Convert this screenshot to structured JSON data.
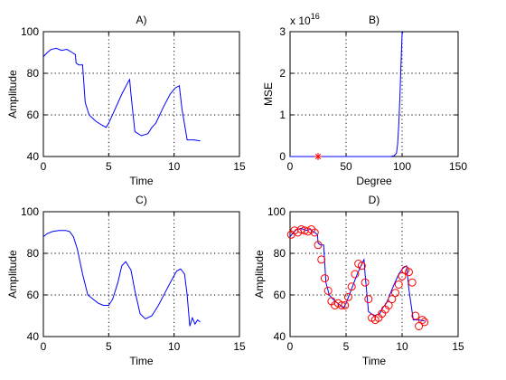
{
  "chart_data": [
    {
      "id": "A",
      "type": "line",
      "title": "A)",
      "xlabel": "Time",
      "ylabel": "Amplitude",
      "xlim": [
        0,
        15
      ],
      "ylim": [
        40,
        100
      ],
      "xticks": [
        0,
        5,
        10,
        15
      ],
      "yticks": [
        40,
        60,
        80,
        100
      ],
      "grid": true,
      "series": [
        {
          "color": "#0000ff",
          "x": [
            0,
            0.3,
            0.6,
            1.0,
            1.4,
            1.8,
            2.2,
            2.45,
            2.5,
            2.7,
            3.0,
            3.2,
            3.5,
            4.0,
            4.5,
            4.8,
            5.0,
            5.5,
            6.0,
            6.5,
            6.6,
            6.7,
            7.0,
            7.5,
            8.0,
            8.3,
            8.6,
            9.2,
            9.7,
            10.1,
            10.4,
            10.6,
            11.0,
            11.5,
            12.0
          ],
          "y": [
            88,
            90,
            91.5,
            92,
            91,
            91.5,
            90,
            89,
            85,
            84,
            84,
            66,
            60,
            57,
            55,
            54,
            56,
            63,
            70,
            76,
            77,
            70,
            52,
            50,
            51,
            54,
            56,
            64,
            70,
            73,
            74,
            63,
            48,
            48,
            47.5
          ]
        }
      ]
    },
    {
      "id": "B",
      "type": "line",
      "title": "B)",
      "xlabel": "Degree",
      "ylabel": "MSE",
      "xlim": [
        0,
        150
      ],
      "ylim": [
        0,
        3
      ],
      "xticks": [
        0,
        50,
        100,
        150
      ],
      "yticks": [
        0,
        1,
        2,
        3
      ],
      "multiplier": "x 10",
      "multiplier_exp": "16",
      "grid": true,
      "series": [
        {
          "color": "#0000ff",
          "x": [
            0,
            10,
            20,
            30,
            40,
            50,
            60,
            70,
            80,
            90,
            93,
            95,
            96,
            97,
            98,
            99,
            100,
            101
          ],
          "y": [
            0,
            0,
            0,
            0,
            0,
            0,
            0,
            0,
            0,
            0,
            0.02,
            0.08,
            0.3,
            0.75,
            1.4,
            2.2,
            2.95,
            3.0
          ]
        }
      ],
      "markers": [
        {
          "x": 25,
          "y": 0,
          "symbol": "*",
          "color": "#ff0000"
        }
      ]
    },
    {
      "id": "C",
      "type": "line",
      "title": "C)",
      "xlabel": "Time",
      "ylabel": "Amplitude",
      "xlim": [
        0,
        15
      ],
      "ylim": [
        40,
        100
      ],
      "xticks": [
        0,
        5,
        10,
        15
      ],
      "yticks": [
        40,
        60,
        80,
        100
      ],
      "grid": true,
      "series": [
        {
          "color": "#0000ff",
          "x": [
            0,
            0.3,
            0.7,
            1.2,
            1.7,
            2.0,
            2.3,
            2.6,
            3.0,
            3.4,
            3.8,
            4.2,
            4.6,
            5.0,
            5.3,
            5.7,
            6.0,
            6.3,
            6.7,
            7.0,
            7.4,
            7.8,
            8.3,
            8.8,
            9.3,
            9.8,
            10.2,
            10.5,
            10.8,
            11.0,
            11.2,
            11.4,
            11.6,
            11.8,
            12.0
          ],
          "y": [
            88,
            89.5,
            90.5,
            91,
            91,
            90.5,
            88,
            82,
            70,
            60,
            58,
            56,
            55,
            55,
            58,
            66,
            74,
            76,
            72,
            62,
            51,
            48.5,
            50,
            55,
            61,
            67,
            71.5,
            72.5,
            70,
            60,
            45,
            49,
            46,
            48,
            47
          ]
        }
      ]
    },
    {
      "id": "D",
      "type": "scatter",
      "title": "D)",
      "xlabel": "Time",
      "ylabel": "Amplitude",
      "xlim": [
        0,
        15
      ],
      "ylim": [
        40,
        100
      ],
      "xticks": [
        0,
        5,
        10,
        15
      ],
      "yticks": [
        40,
        60,
        80,
        100
      ],
      "grid": true,
      "series": [
        {
          "color": "#0000ff",
          "kind": "line",
          "x": [
            0,
            0.3,
            0.6,
            1.0,
            1.4,
            1.8,
            2.2,
            2.45,
            2.5,
            2.7,
            3.0,
            3.2,
            3.5,
            4.0,
            4.5,
            4.8,
            5.0,
            5.5,
            6.0,
            6.5,
            6.6,
            6.7,
            7.0,
            7.5,
            8.0,
            8.3,
            8.6,
            9.2,
            9.7,
            10.1,
            10.4,
            10.6,
            11.0,
            11.5,
            12.0
          ],
          "y": [
            88,
            90,
            91.5,
            92,
            91,
            91.5,
            90,
            89,
            85,
            84,
            84,
            66,
            60,
            57,
            55,
            54,
            56,
            63,
            70,
            76,
            77,
            70,
            52,
            50,
            51,
            54,
            56,
            64,
            70,
            73,
            74,
            63,
            48,
            48,
            47.5
          ]
        },
        {
          "color": "#ff0000",
          "kind": "circles",
          "x": [
            0.1,
            0.4,
            0.7,
            1.0,
            1.3,
            1.6,
            1.9,
            2.2,
            2.5,
            2.8,
            3.1,
            3.4,
            3.7,
            4.0,
            4.3,
            4.6,
            4.9,
            5.2,
            5.5,
            5.8,
            6.1,
            6.4,
            6.7,
            7.0,
            7.3,
            7.6,
            7.9,
            8.2,
            8.5,
            8.8,
            9.1,
            9.4,
            9.7,
            10.0,
            10.3,
            10.6,
            10.9,
            11.2,
            11.5,
            11.8,
            12.0
          ],
          "y": [
            89,
            91,
            90,
            91.5,
            91,
            90.5,
            91.5,
            90,
            84,
            77,
            68,
            62,
            57,
            55,
            56,
            55,
            55,
            59,
            64,
            70,
            75,
            74,
            66,
            58,
            49,
            48,
            49,
            51,
            53,
            55,
            58,
            61,
            65,
            69,
            72,
            71,
            66,
            50,
            45,
            48,
            47
          ]
        }
      ]
    }
  ]
}
